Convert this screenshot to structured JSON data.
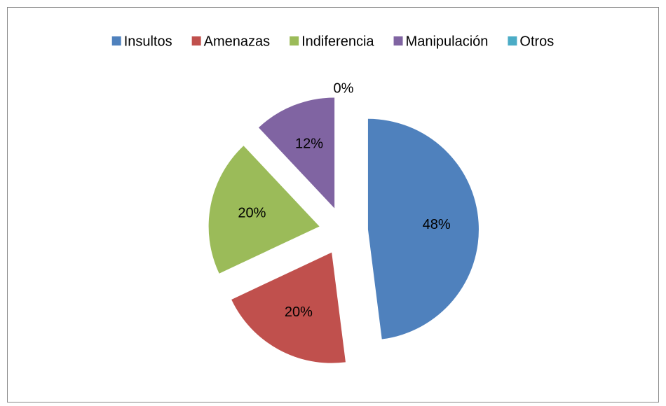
{
  "chart_data": {
    "type": "pie",
    "categories": [
      "Insultos",
      "Amenazas",
      "Indiferencia",
      "Manipulación",
      "Otros"
    ],
    "values": [
      48,
      20,
      20,
      12,
      0
    ],
    "value_labels": [
      "48%",
      "20%",
      "20%",
      "12%",
      "0%"
    ],
    "colors": [
      "#4f81bd",
      "#c0504d",
      "#9bbb59",
      "#8064a2",
      "#4bacc6"
    ],
    "legend": "top"
  }
}
